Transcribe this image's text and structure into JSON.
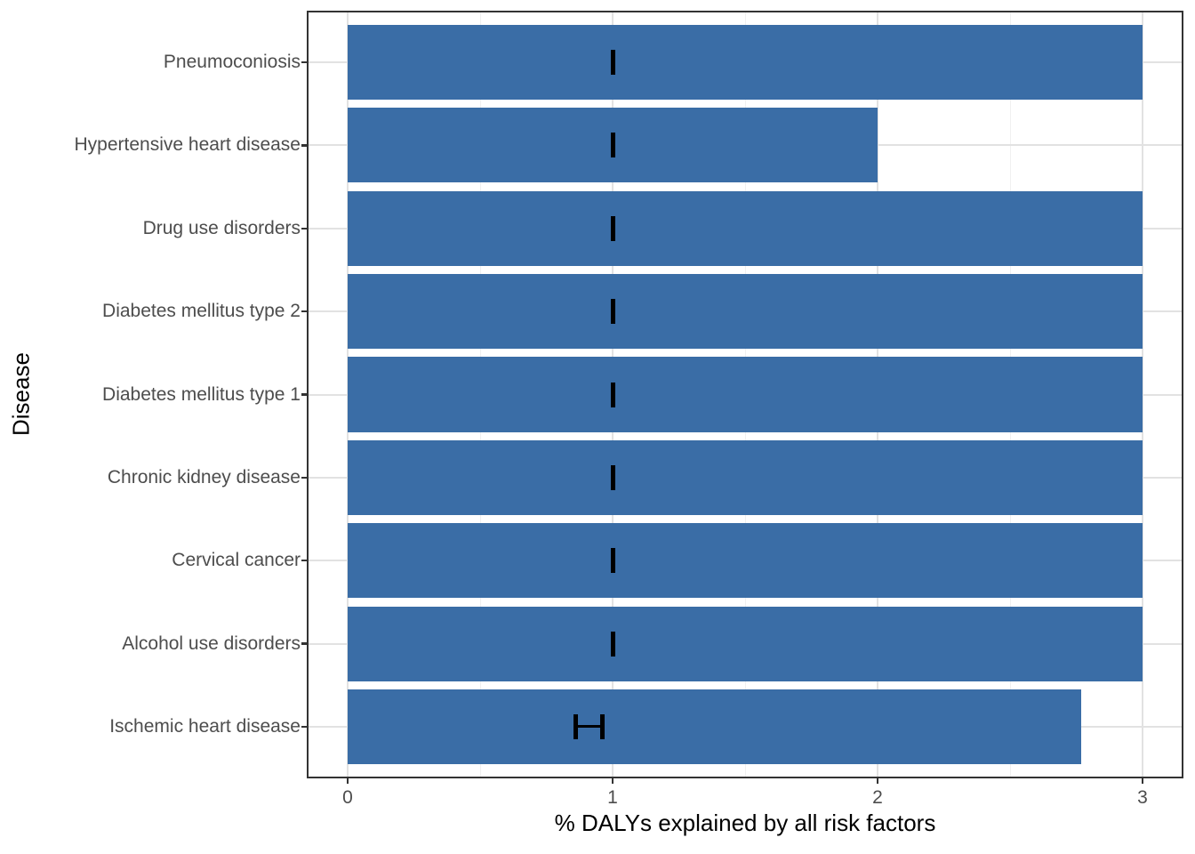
{
  "chart_data": {
    "type": "bar",
    "orientation": "horizontal",
    "title": "",
    "xlabel": "% DALYs explained by all risk factors",
    "ylabel": "Disease",
    "xlim": [
      0,
      3
    ],
    "x_ticks": [
      0,
      1,
      2,
      3
    ],
    "x_tick_labels": [
      "0",
      "1",
      "2",
      "3"
    ],
    "x_minor_gridlines": [
      0.5,
      1.5,
      2.5
    ],
    "grid": true,
    "legend": false,
    "categories": [
      "Pneumoconiosis",
      "Hypertensive heart disease",
      "Drug use disorders",
      "Diabetes mellitus type 2",
      "Diabetes mellitus type 1",
      "Chronic kidney disease",
      "Cervical cancer",
      "Alcohol use disorders",
      "Ischemic heart disease"
    ],
    "values": [
      3.0,
      2.0,
      3.0,
      3.0,
      3.0,
      3.0,
      3.0,
      3.0,
      2.77
    ],
    "error_bars": [
      {
        "lower": 1.0,
        "upper": 1.0
      },
      {
        "lower": 1.0,
        "upper": 1.0
      },
      {
        "lower": 1.0,
        "upper": 1.0
      },
      {
        "lower": 1.0,
        "upper": 1.0
      },
      {
        "lower": 1.0,
        "upper": 1.0
      },
      {
        "lower": 1.0,
        "upper": 1.0
      },
      {
        "lower": 1.0,
        "upper": 1.0
      },
      {
        "lower": 1.0,
        "upper": 1.0
      },
      {
        "lower": 0.86,
        "upper": 0.96
      }
    ],
    "colors": {
      "bar": "#3A6DA6",
      "error_bar": "#000000",
      "grid_major": "#E2E2E2",
      "grid_minor": "#F0F0F0",
      "panel_border": "#333333",
      "axis_text": "#4D4D4D",
      "axis_title": "#000000",
      "tick_mark": "#333333",
      "background": "#FFFFFF"
    }
  }
}
